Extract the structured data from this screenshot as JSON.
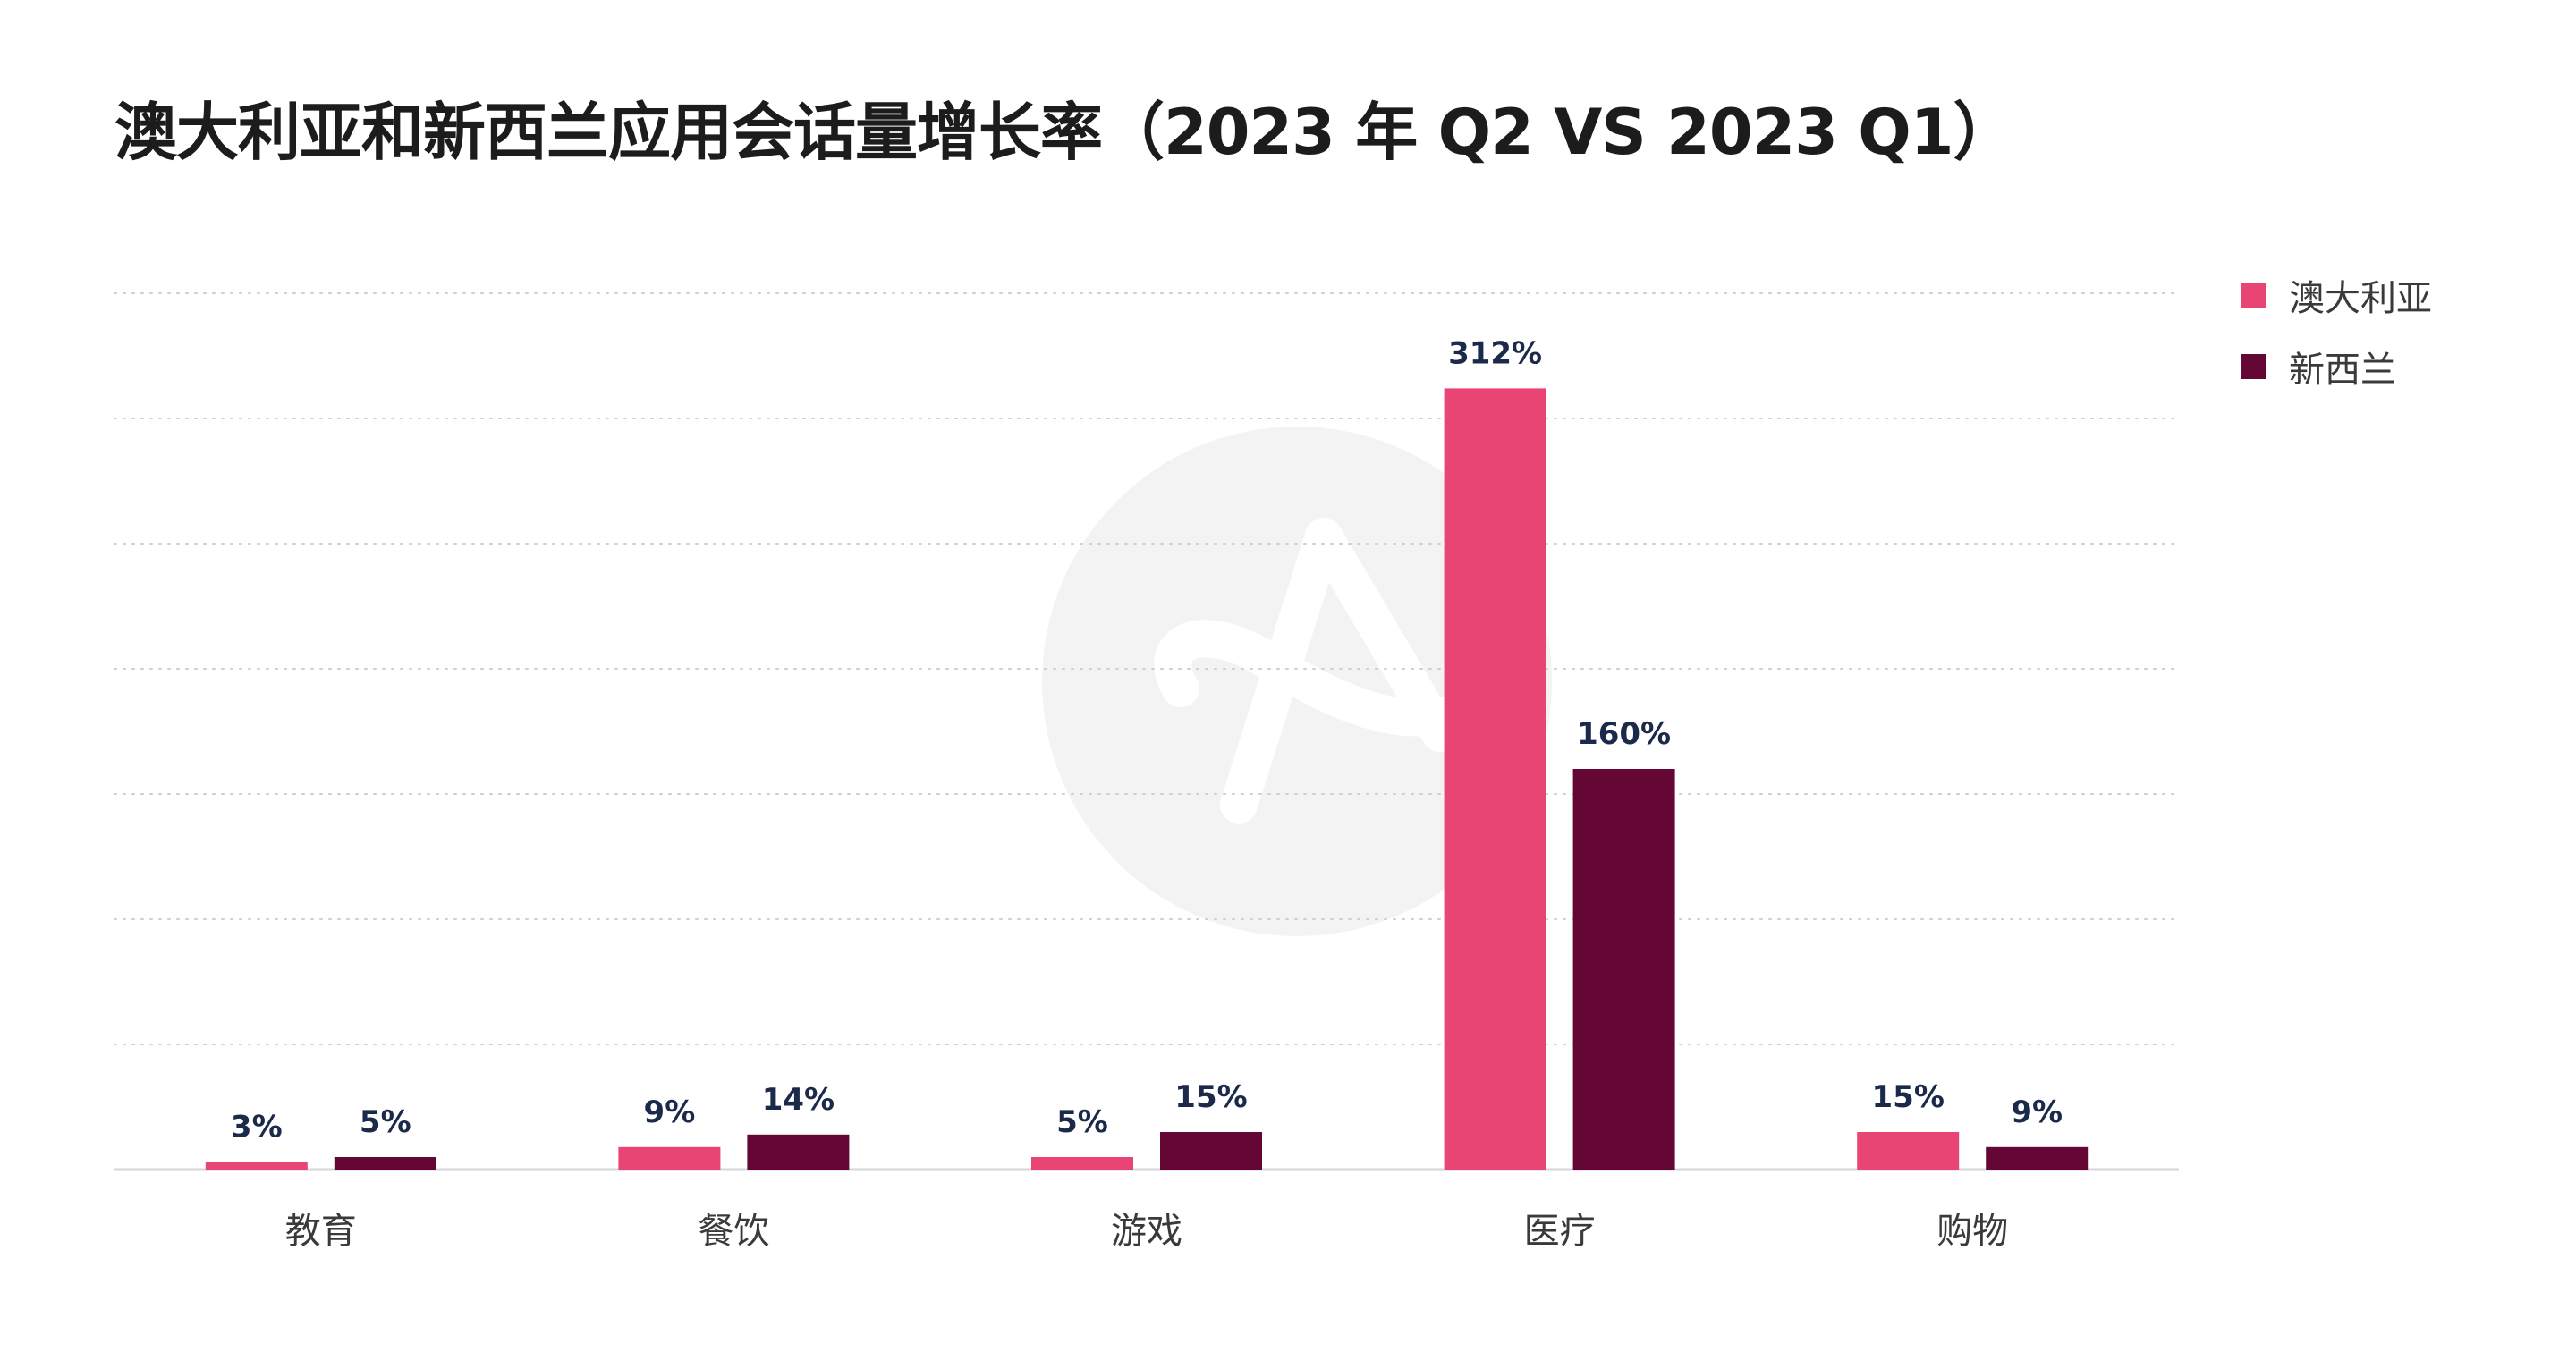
{
  "title": "澳大利亚和新西兰应用会话量增长率（2023 年 Q2 VS 2023 Q1）",
  "colors": {
    "australia": "#e84474",
    "new_zealand": "#650734",
    "value_label": "#1b2a4a",
    "category_label": "#3a3a3a",
    "grid": "#cfcfcf",
    "axis": "#d5d5dd",
    "watermark": "#f3f3f3"
  },
  "watermark_icon": "app-logo-icon",
  "chart_data": {
    "type": "bar",
    "title": "澳大利亚和新西兰应用会话量增长率（2023 年 Q2 VS 2023 Q1）",
    "categories": [
      "教育",
      "餐饮",
      "游戏",
      "医疗",
      "购物"
    ],
    "series": [
      {
        "name": "澳大利亚",
        "color": "#e84474",
        "values": [
          3,
          9,
          5,
          312,
          15
        ],
        "labels": [
          "3%",
          "9%",
          "5%",
          "312%",
          "15%"
        ]
      },
      {
        "name": "新西兰",
        "color": "#650734",
        "values": [
          5,
          14,
          15,
          160,
          9
        ],
        "labels": [
          "5%",
          "14%",
          "15%",
          "160%",
          "9%"
        ]
      }
    ],
    "ylim": [
      0,
      350
    ],
    "grid": true,
    "legend_position": "top-right",
    "xlabel": "",
    "ylabel": ""
  }
}
